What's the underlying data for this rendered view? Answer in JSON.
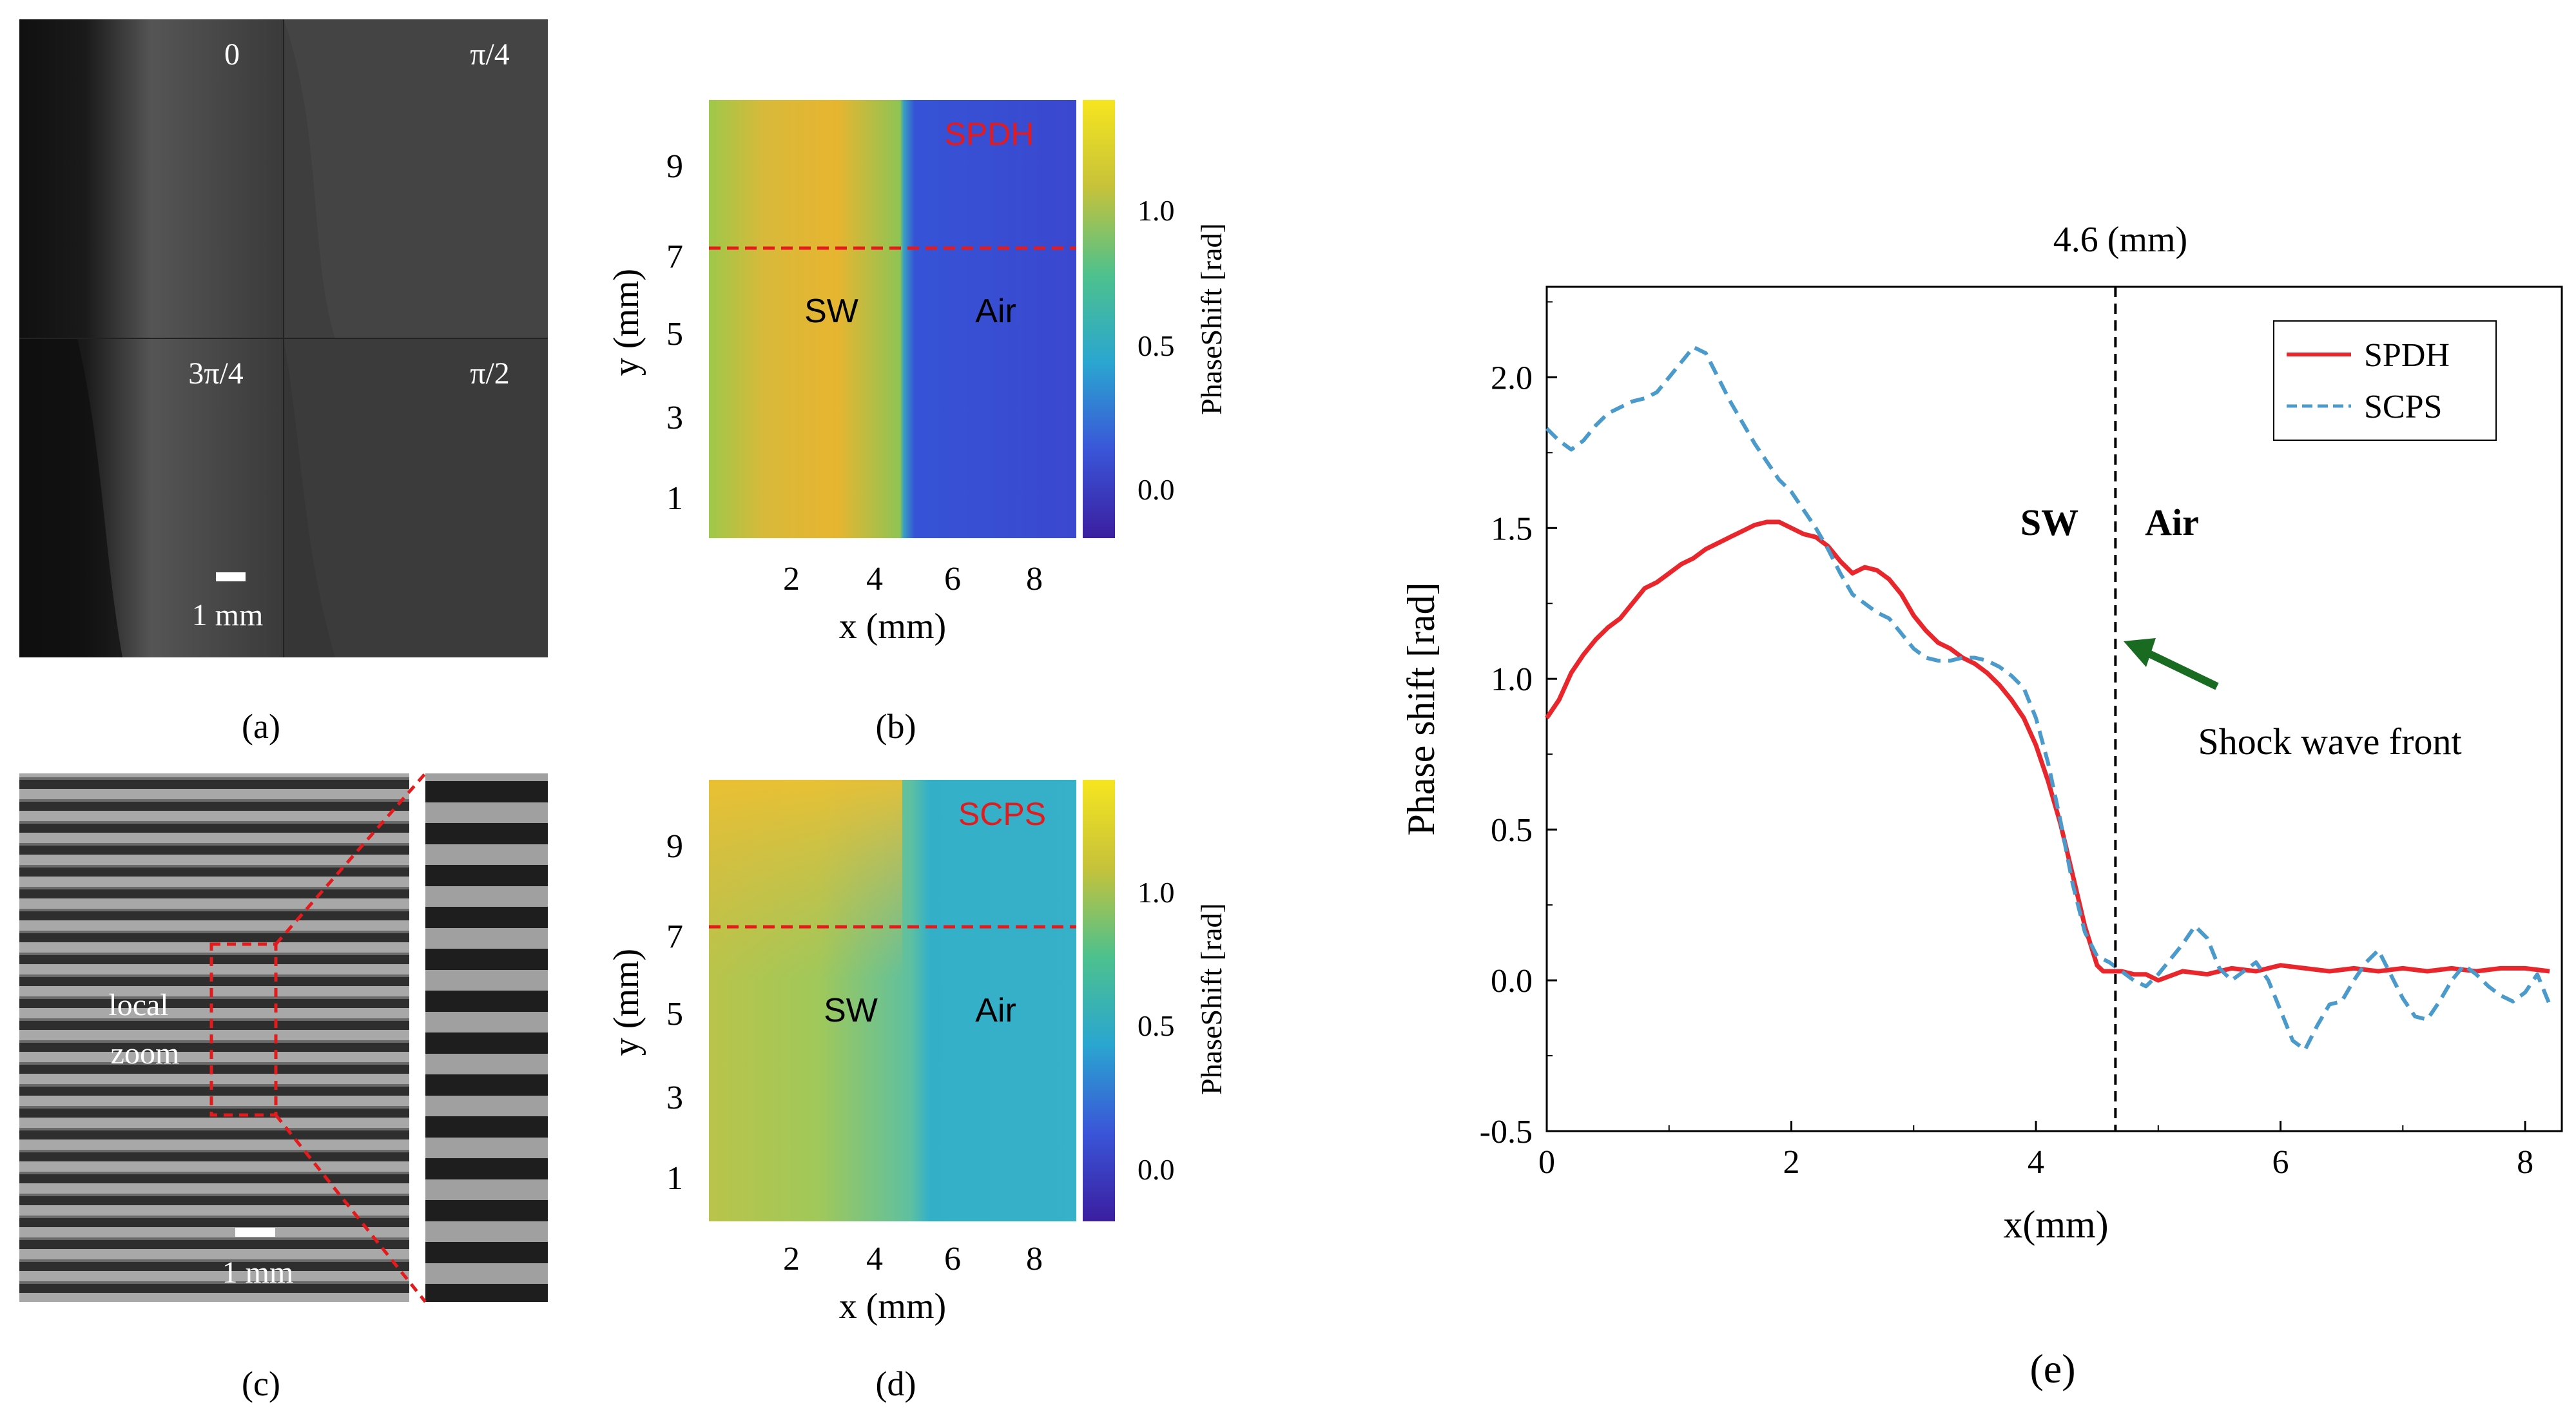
{
  "figure": {
    "panel_a": {
      "label": "(a)",
      "phase_labels": [
        "0",
        "π/4",
        "3π/4",
        "π/2"
      ],
      "scalebar": "1 mm"
    },
    "panel_b": {
      "label": "(b)",
      "method": "SPDH",
      "region_left": "SW",
      "region_right": "Air",
      "xlabel": "x (mm)",
      "ylabel": "y (mm)",
      "xticks": [
        "2",
        "4",
        "6",
        "8"
      ],
      "yticks": [
        "9",
        "7",
        "5",
        "3",
        "1"
      ],
      "colorbar_label": "PhaseShift [rad]",
      "colorbar_ticks": [
        "1.0",
        "0.5",
        "0.0"
      ]
    },
    "panel_c": {
      "label": "(c)",
      "zoom_label_1": "local",
      "zoom_label_2": "zoom",
      "scalebar": "1 mm"
    },
    "panel_d": {
      "label": "(d)",
      "method": "SCPS",
      "region_left": "SW",
      "region_right": "Air",
      "xlabel": "x (mm)",
      "ylabel": "y (mm)",
      "xticks": [
        "2",
        "4",
        "6",
        "8"
      ],
      "yticks": [
        "9",
        "7",
        "5",
        "3",
        "1"
      ],
      "colorbar_label": "PhaseShift [rad]",
      "colorbar_ticks": [
        "1.0",
        "0.5",
        "0.0"
      ]
    },
    "panel_e": {
      "label": "(e)",
      "front_position": "4.6 (mm)",
      "region_left": "SW",
      "region_right": "Air",
      "annotation": "Shock wave front"
    }
  },
  "chart_data": {
    "type": "line",
    "title": "",
    "xlabel": "x(mm)",
    "ylabel": "Phase shift [rad]",
    "xlim": [
      0,
      8.3
    ],
    "ylim": [
      -0.5,
      2.3
    ],
    "xticks": [
      0,
      2,
      4,
      6,
      8
    ],
    "yticks": [
      -0.5,
      0.0,
      0.5,
      1.0,
      1.5,
      2.0
    ],
    "vline_x": 4.65,
    "legend_position": "top-right",
    "series": [
      {
        "name": "SPDH",
        "color": "#e8262b",
        "style": "solid",
        "x": [
          0,
          0.1,
          0.2,
          0.3,
          0.4,
          0.5,
          0.6,
          0.7,
          0.8,
          0.9,
          1.0,
          1.1,
          1.2,
          1.3,
          1.4,
          1.5,
          1.6,
          1.7,
          1.8,
          1.9,
          2.0,
          2.1,
          2.2,
          2.3,
          2.4,
          2.5,
          2.6,
          2.7,
          2.8,
          2.9,
          3.0,
          3.1,
          3.2,
          3.3,
          3.4,
          3.5,
          3.6,
          3.7,
          3.8,
          3.9,
          4.0,
          4.1,
          4.2,
          4.3,
          4.4,
          4.5,
          4.55,
          4.6,
          4.7,
          4.8,
          4.9,
          5.0,
          5.2,
          5.4,
          5.6,
          5.8,
          6.0,
          6.2,
          6.4,
          6.6,
          6.8,
          7.0,
          7.2,
          7.4,
          7.6,
          7.8,
          8.0,
          8.2
        ],
        "y": [
          0.87,
          0.93,
          1.02,
          1.08,
          1.13,
          1.17,
          1.2,
          1.25,
          1.3,
          1.32,
          1.35,
          1.38,
          1.4,
          1.43,
          1.45,
          1.47,
          1.49,
          1.51,
          1.52,
          1.52,
          1.5,
          1.48,
          1.47,
          1.44,
          1.39,
          1.35,
          1.37,
          1.36,
          1.33,
          1.28,
          1.21,
          1.16,
          1.12,
          1.1,
          1.07,
          1.05,
          1.02,
          0.98,
          0.93,
          0.87,
          0.78,
          0.66,
          0.52,
          0.35,
          0.18,
          0.05,
          0.03,
          0.03,
          0.03,
          0.02,
          0.02,
          0.0,
          0.03,
          0.02,
          0.04,
          0.03,
          0.05,
          0.04,
          0.03,
          0.04,
          0.03,
          0.04,
          0.03,
          0.04,
          0.03,
          0.04,
          0.04,
          0.03
        ]
      },
      {
        "name": "SCPS",
        "color": "#4a9acc",
        "style": "dashed",
        "x": [
          0,
          0.1,
          0.2,
          0.3,
          0.4,
          0.5,
          0.6,
          0.7,
          0.8,
          0.9,
          1.0,
          1.1,
          1.2,
          1.3,
          1.4,
          1.5,
          1.6,
          1.7,
          1.8,
          1.9,
          2.0,
          2.1,
          2.2,
          2.3,
          2.4,
          2.5,
          2.6,
          2.7,
          2.8,
          2.9,
          3.0,
          3.1,
          3.2,
          3.3,
          3.4,
          3.5,
          3.6,
          3.7,
          3.8,
          3.9,
          4.0,
          4.1,
          4.2,
          4.3,
          4.4,
          4.5,
          4.6,
          4.7,
          4.8,
          4.9,
          5.0,
          5.1,
          5.2,
          5.3,
          5.4,
          5.5,
          5.6,
          5.7,
          5.8,
          5.9,
          6.0,
          6.1,
          6.2,
          6.3,
          6.4,
          6.5,
          6.6,
          6.7,
          6.8,
          6.9,
          7.0,
          7.1,
          7.2,
          7.3,
          7.4,
          7.5,
          7.6,
          7.7,
          7.8,
          7.9,
          8.0,
          8.1,
          8.2
        ],
        "y": [
          1.83,
          1.79,
          1.76,
          1.79,
          1.84,
          1.88,
          1.9,
          1.92,
          1.93,
          1.95,
          2.0,
          2.05,
          2.1,
          2.08,
          2.0,
          1.92,
          1.85,
          1.78,
          1.72,
          1.66,
          1.62,
          1.56,
          1.5,
          1.43,
          1.35,
          1.28,
          1.25,
          1.22,
          1.2,
          1.15,
          1.1,
          1.07,
          1.06,
          1.06,
          1.07,
          1.07,
          1.06,
          1.04,
          1.01,
          0.97,
          0.87,
          0.72,
          0.53,
          0.32,
          0.16,
          0.08,
          0.06,
          0.03,
          0.0,
          -0.02,
          0.02,
          0.07,
          0.12,
          0.18,
          0.14,
          0.04,
          0.0,
          0.03,
          0.06,
          0.0,
          -0.1,
          -0.2,
          -0.23,
          -0.15,
          -0.08,
          -0.07,
          0.0,
          0.06,
          0.1,
          0.02,
          -0.06,
          -0.12,
          -0.13,
          -0.07,
          0.0,
          0.05,
          0.02,
          -0.02,
          -0.05,
          -0.07,
          -0.04,
          0.02,
          -0.08
        ]
      }
    ]
  }
}
